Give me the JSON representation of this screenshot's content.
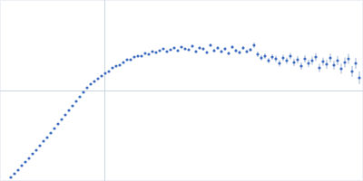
{
  "chart_data": {
    "type": "scatter",
    "x": [
      0.012,
      0.016,
      0.02,
      0.024,
      0.028,
      0.032,
      0.036,
      0.04,
      0.044,
      0.048,
      0.052,
      0.056,
      0.06,
      0.064,
      0.068,
      0.072,
      0.076,
      0.08,
      0.084,
      0.088,
      0.092,
      0.096,
      0.1,
      0.104,
      0.108,
      0.112,
      0.116,
      0.12,
      0.124,
      0.128,
      0.132,
      0.136,
      0.14,
      0.144,
      0.148,
      0.152,
      0.156,
      0.16,
      0.164,
      0.168,
      0.172,
      0.176,
      0.18,
      0.184,
      0.188,
      0.192,
      0.196,
      0.2,
      0.204,
      0.208,
      0.212,
      0.216,
      0.22,
      0.224,
      0.228,
      0.232,
      0.236,
      0.24,
      0.244,
      0.248,
      0.252,
      0.256,
      0.26,
      0.264,
      0.268,
      0.272,
      0.276,
      0.28,
      0.284,
      0.288,
      0.292,
      0.296,
      0.3,
      0.304,
      0.308,
      0.312,
      0.316,
      0.32,
      0.324,
      0.328,
      0.332,
      0.336,
      0.34,
      0.344,
      0.348,
      0.352,
      0.356,
      0.36,
      0.364,
      0.368,
      0.372,
      0.376,
      0.38,
      0.384,
      0.388,
      0.392,
      0.396
    ],
    "values": [
      0.04,
      0.08,
      0.12,
      0.17,
      0.21,
      0.25,
      0.3,
      0.34,
      0.39,
      0.44,
      0.48,
      0.53,
      0.58,
      0.63,
      0.68,
      0.73,
      0.78,
      0.83,
      0.88,
      0.93,
      0.98,
      1.03,
      1.07,
      1.1,
      1.13,
      1.16,
      1.19,
      1.21,
      1.25,
      1.27,
      1.28,
      1.31,
      1.34,
      1.34,
      1.37,
      1.38,
      1.38,
      1.41,
      1.4,
      1.43,
      1.42,
      1.44,
      1.46,
      1.43,
      1.45,
      1.47,
      1.44,
      1.48,
      1.46,
      1.45,
      1.49,
      1.43,
      1.47,
      1.46,
      1.42,
      1.5,
      1.44,
      1.47,
      1.43,
      1.46,
      1.41,
      1.48,
      1.44,
      1.42,
      1.47,
      1.43,
      1.45,
      1.5,
      1.4,
      1.36,
      1.38,
      1.33,
      1.37,
      1.35,
      1.3,
      1.36,
      1.33,
      1.38,
      1.31,
      1.34,
      1.27,
      1.35,
      1.3,
      1.33,
      1.37,
      1.25,
      1.32,
      1.29,
      1.36,
      1.28,
      1.33,
      1.24,
      1.31,
      1.35,
      1.21,
      1.3,
      1.14
    ],
    "errors": [
      0.005,
      0.005,
      0.005,
      0.005,
      0.005,
      0.005,
      0.005,
      0.005,
      0.005,
      0.005,
      0.005,
      0.005,
      0.005,
      0.005,
      0.005,
      0.005,
      0.005,
      0.005,
      0.005,
      0.005,
      0.005,
      0.005,
      0.005,
      0.005,
      0.005,
      0.005,
      0.005,
      0.005,
      0.005,
      0.005,
      0.005,
      0.008,
      0.008,
      0.008,
      0.008,
      0.008,
      0.008,
      0.008,
      0.008,
      0.008,
      0.008,
      0.01,
      0.01,
      0.01,
      0.01,
      0.012,
      0.012,
      0.012,
      0.012,
      0.012,
      0.015,
      0.015,
      0.015,
      0.015,
      0.015,
      0.018,
      0.018,
      0.018,
      0.018,
      0.018,
      0.02,
      0.02,
      0.02,
      0.02,
      0.02,
      0.02,
      0.02,
      0.03,
      0.03,
      0.03,
      0.03,
      0.03,
      0.03,
      0.035,
      0.035,
      0.035,
      0.035,
      0.035,
      0.04,
      0.04,
      0.04,
      0.04,
      0.04,
      0.045,
      0.045,
      0.045,
      0.045,
      0.05,
      0.05,
      0.05,
      0.05,
      0.055,
      0.055,
      0.055,
      0.06,
      0.06,
      0.07
    ],
    "color": "#3e6cbf",
    "marker": "circle",
    "xlim": [
      0,
      0.4
    ],
    "xticks": [
      0.115
    ],
    "ylim": [
      0,
      2
    ],
    "yticks": [
      1
    ],
    "grid": true,
    "tick_labels": false
  }
}
